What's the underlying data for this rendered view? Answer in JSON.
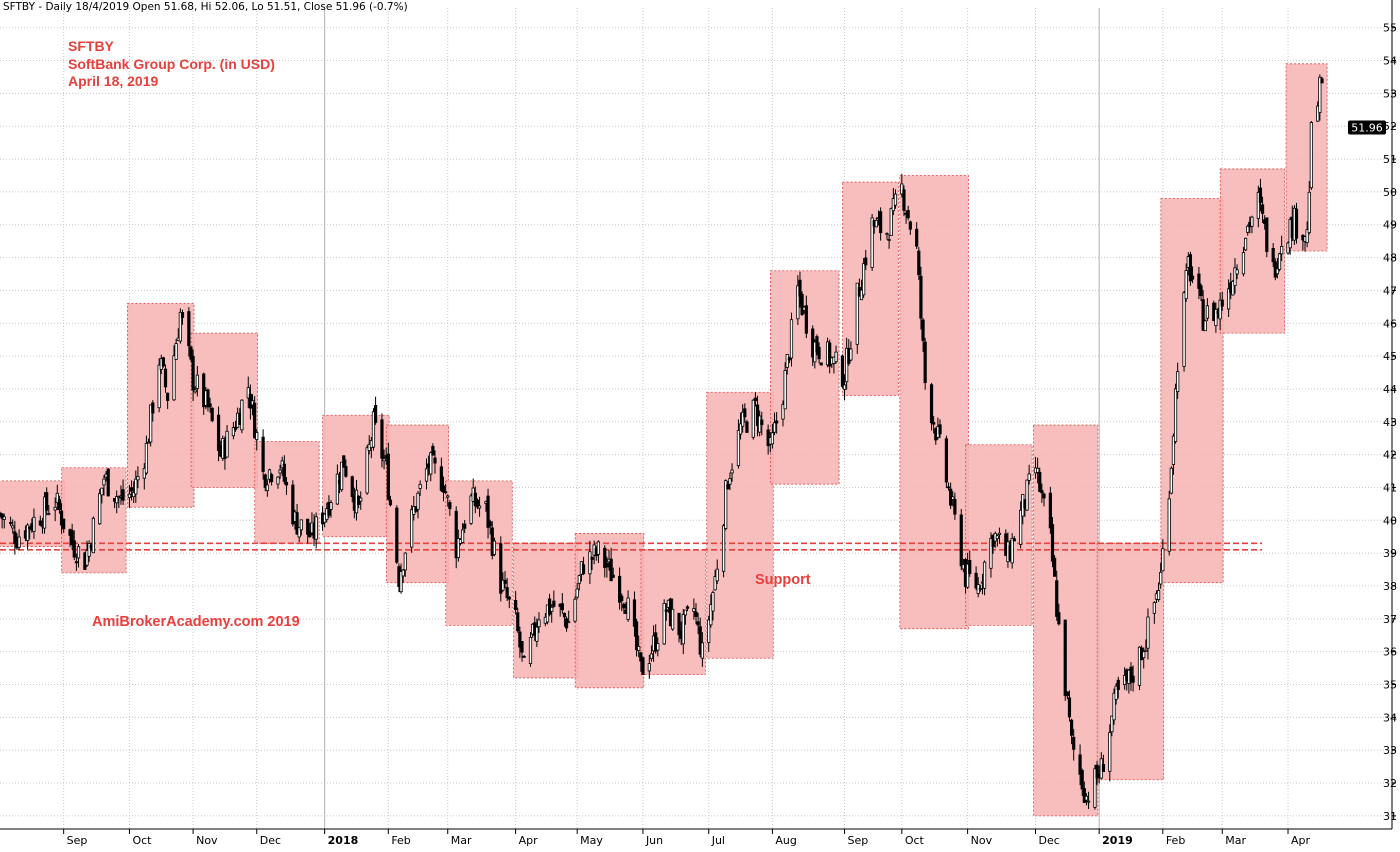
{
  "header": {
    "text": "SFTBY - Daily 18/4/2019 Open 51.68, Hi 52.06, Lo 51.51, Close 51.96 (-0.7%)"
  },
  "annotations": {
    "ticker": "SFTBY",
    "company": "SoftBank Group Corp. (in USD)",
    "date": "April 18, 2019",
    "watermark": "AmiBrokerAcademy.com 2019",
    "support_label": "Support"
  },
  "colors": {
    "box_fill": "#f7b3b3",
    "box_border": "#e04545",
    "support_line": "#e8403c",
    "annotation_text": "#e8403c",
    "grid": "#c8c8c8",
    "candle": "#000000",
    "price_badge_bg": "#000000",
    "price_badge_text": "#ffffff"
  },
  "chart_data": {
    "type": "candlestick",
    "title": "SFTBY",
    "x_axis": {
      "labels": [
        "Sep",
        "Oct",
        "Nov",
        "Dec",
        "2018",
        "Feb",
        "Mar",
        "Apr",
        "May",
        "Jun",
        "Jul",
        "Aug",
        "Sep",
        "Oct",
        "Nov",
        "Dec",
        "2019",
        "Feb",
        "Mar",
        "Apr"
      ],
      "bold_labels": [
        "2018",
        "2019"
      ],
      "range": [
        "2017-08-02",
        "2019-05-20"
      ]
    },
    "y_axis": {
      "position": "right",
      "ticks": [
        31,
        32,
        33,
        34,
        35,
        36,
        37,
        38,
        39,
        40,
        41,
        42,
        43,
        44,
        45,
        46,
        47,
        48,
        49,
        50,
        51,
        52,
        53,
        54,
        55
      ],
      "ylim": [
        30.6,
        55.6
      ]
    },
    "grid": true,
    "last_price": "51.96",
    "support_levels": [
      39.1,
      39.3
    ],
    "monthly_ranges": [
      {
        "month": "Aug 2017",
        "start": "2017-08-02",
        "end": "2017-08-31",
        "high": 41.2,
        "low": 39.2
      },
      {
        "month": "Sep 2017",
        "start": "2017-09-01",
        "end": "2017-09-29",
        "high": 41.6,
        "low": 38.4
      },
      {
        "month": "Oct 2017",
        "start": "2017-10-02",
        "end": "2017-10-31",
        "high": 46.6,
        "low": 40.4
      },
      {
        "month": "Nov 2017",
        "start": "2017-11-01",
        "end": "2017-11-30",
        "high": 45.7,
        "low": 41.0
      },
      {
        "month": "Dec 2017",
        "start": "2017-12-01",
        "end": "2017-12-29",
        "high": 42.4,
        "low": 39.3
      },
      {
        "month": "Jan 2018",
        "start": "2018-01-02",
        "end": "2018-01-31",
        "high": 43.2,
        "low": 39.5
      },
      {
        "month": "Feb 2018",
        "start": "2018-02-01",
        "end": "2018-02-28",
        "high": 42.9,
        "low": 38.1
      },
      {
        "month": "Mar 2018",
        "start": "2018-03-01",
        "end": "2018-03-30",
        "high": 41.2,
        "low": 36.8
      },
      {
        "month": "Apr 2018",
        "start": "2018-04-02",
        "end": "2018-04-30",
        "high": 39.3,
        "low": 35.2
      },
      {
        "month": "May 2018",
        "start": "2018-05-01",
        "end": "2018-05-31",
        "high": 39.6,
        "low": 34.9
      },
      {
        "month": "Jun 2018",
        "start": "2018-06-01",
        "end": "2018-06-29",
        "high": 39.1,
        "low": 35.3
      },
      {
        "month": "Jul 2018",
        "start": "2018-07-02",
        "end": "2018-07-31",
        "high": 43.9,
        "low": 35.8
      },
      {
        "month": "Aug 2018",
        "start": "2018-08-01",
        "end": "2018-08-31",
        "high": 47.6,
        "low": 41.1
      },
      {
        "month": "Sep 2018",
        "start": "2018-09-04",
        "end": "2018-09-28",
        "high": 50.3,
        "low": 43.8
      },
      {
        "month": "Oct 2018",
        "start": "2018-10-01",
        "end": "2018-10-31",
        "high": 50.5,
        "low": 36.7
      },
      {
        "month": "Nov 2018",
        "start": "2018-11-01",
        "end": "2018-11-30",
        "high": 42.3,
        "low": 36.8
      },
      {
        "month": "Dec 2018",
        "start": "2018-12-03",
        "end": "2018-12-31",
        "high": 42.9,
        "low": 31.0
      },
      {
        "month": "Jan 2019",
        "start": "2019-01-02",
        "end": "2019-01-31",
        "high": 39.3,
        "low": 32.1
      },
      {
        "month": "Feb 2019",
        "start": "2019-02-01",
        "end": "2019-02-28",
        "high": 49.8,
        "low": 38.1
      },
      {
        "month": "Mar 2019",
        "start": "2019-03-01",
        "end": "2019-03-29",
        "high": 50.7,
        "low": 45.7
      },
      {
        "month": "Apr 2019",
        "start": "2019-04-01",
        "end": "2019-04-18",
        "high": 53.9,
        "low": 48.2
      }
    ],
    "price_path": [
      [
        "2017-08-02",
        40.2
      ],
      [
        "2017-08-10",
        39.5
      ],
      [
        "2017-08-18",
        40.0
      ],
      [
        "2017-08-28",
        40.6
      ],
      [
        "2017-09-05",
        39.3
      ],
      [
        "2017-09-11",
        38.8
      ],
      [
        "2017-09-15",
        39.8
      ],
      [
        "2017-09-20",
        41.3
      ],
      [
        "2017-09-28",
        40.6
      ],
      [
        "2017-10-04",
        40.9
      ],
      [
        "2017-10-10",
        42.2
      ],
      [
        "2017-10-16",
        44.9
      ],
      [
        "2017-10-20",
        43.8
      ],
      [
        "2017-10-26",
        46.3
      ],
      [
        "2017-11-01",
        44.3
      ],
      [
        "2017-11-08",
        43.4
      ],
      [
        "2017-11-14",
        42.0
      ],
      [
        "2017-11-21",
        43.0
      ],
      [
        "2017-11-27",
        44.1
      ],
      [
        "2017-12-04",
        41.4
      ],
      [
        "2017-12-12",
        41.7
      ],
      [
        "2017-12-19",
        40.0
      ],
      [
        "2017-12-27",
        39.5
      ],
      [
        "2018-01-04",
        40.6
      ],
      [
        "2018-01-11",
        41.8
      ],
      [
        "2018-01-18",
        40.3
      ],
      [
        "2018-01-25",
        42.9
      ],
      [
        "2018-01-31",
        41.6
      ],
      [
        "2018-02-06",
        38.3
      ],
      [
        "2018-02-13",
        40.3
      ],
      [
        "2018-02-20",
        41.7
      ],
      [
        "2018-02-27",
        41.2
      ],
      [
        "2018-03-05",
        39.2
      ],
      [
        "2018-03-12",
        40.6
      ],
      [
        "2018-03-19",
        40.3
      ],
      [
        "2018-03-26",
        38.1
      ],
      [
        "2018-04-02",
        36.9
      ],
      [
        "2018-04-06",
        35.4
      ],
      [
        "2018-04-13",
        37.2
      ],
      [
        "2018-04-20",
        37.4
      ],
      [
        "2018-04-27",
        36.9
      ],
      [
        "2018-05-04",
        38.7
      ],
      [
        "2018-05-11",
        39.0
      ],
      [
        "2018-05-18",
        38.3
      ],
      [
        "2018-05-24",
        37.6
      ],
      [
        "2018-05-31",
        35.4
      ],
      [
        "2018-06-06",
        36.2
      ],
      [
        "2018-06-12",
        37.3
      ],
      [
        "2018-06-19",
        36.6
      ],
      [
        "2018-06-25",
        37.3
      ],
      [
        "2018-06-29",
        35.9
      ],
      [
        "2018-07-05",
        38.2
      ],
      [
        "2018-07-11",
        41.3
      ],
      [
        "2018-07-17",
        42.8
      ],
      [
        "2018-07-24",
        43.4
      ],
      [
        "2018-07-31",
        42.1
      ],
      [
        "2018-08-06",
        43.9
      ],
      [
        "2018-08-13",
        47.0
      ],
      [
        "2018-08-20",
        45.4
      ],
      [
        "2018-08-27",
        45.0
      ],
      [
        "2018-09-04",
        44.4
      ],
      [
        "2018-09-10",
        46.8
      ],
      [
        "2018-09-17",
        49.0
      ],
      [
        "2018-09-24",
        48.8
      ],
      [
        "2018-10-01",
        50.1
      ],
      [
        "2018-10-08",
        48.2
      ],
      [
        "2018-10-12",
        44.2
      ],
      [
        "2018-10-19",
        42.2
      ],
      [
        "2018-10-24",
        40.6
      ],
      [
        "2018-10-31",
        38.3
      ],
      [
        "2018-11-06",
        38.0
      ],
      [
        "2018-11-13",
        39.6
      ],
      [
        "2018-11-20",
        38.9
      ],
      [
        "2018-11-27",
        40.4
      ],
      [
        "2018-12-03",
        41.6
      ],
      [
        "2018-12-10",
        39.4
      ],
      [
        "2018-12-14",
        36.7
      ],
      [
        "2018-12-20",
        33.2
      ],
      [
        "2018-12-27",
        31.6
      ],
      [
        "2019-01-03",
        32.4
      ],
      [
        "2019-01-10",
        34.6
      ],
      [
        "2019-01-17",
        35.2
      ],
      [
        "2019-01-24",
        36.4
      ],
      [
        "2019-01-31",
        38.3
      ],
      [
        "2019-02-05",
        41.8
      ],
      [
        "2019-02-08",
        44.9
      ],
      [
        "2019-02-13",
        47.8
      ],
      [
        "2019-02-20",
        46.2
      ],
      [
        "2019-02-27",
        46.4
      ],
      [
        "2019-03-05",
        47.3
      ],
      [
        "2019-03-12",
        48.8
      ],
      [
        "2019-03-18",
        49.7
      ],
      [
        "2019-03-25",
        47.6
      ],
      [
        "2019-03-29",
        48.6
      ],
      [
        "2019-04-04",
        49.1
      ],
      [
        "2019-04-10",
        48.7
      ],
      [
        "2019-04-12",
        51.7
      ],
      [
        "2019-04-15",
        52.7
      ],
      [
        "2019-04-17",
        53.4
      ],
      [
        "2019-04-18",
        51.96
      ]
    ]
  }
}
